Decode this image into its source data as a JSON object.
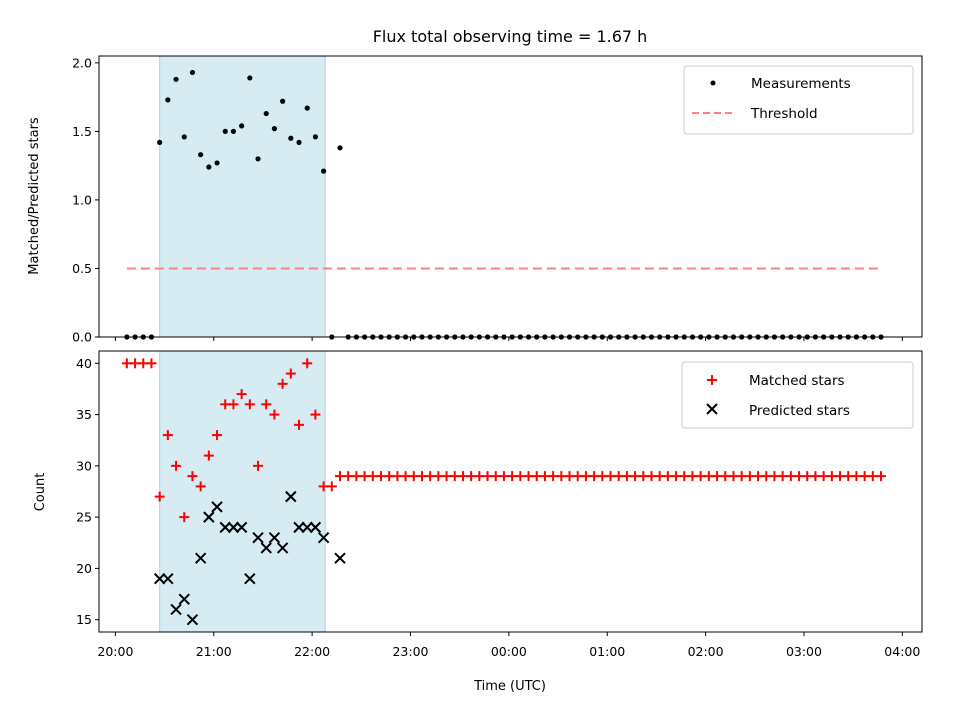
{
  "chart_data": [
    {
      "type": "scatter",
      "title": "Flux total observing time = 1.67 h",
      "xlabel": "",
      "ylabel": "Matched/Predicted stars",
      "ylim": [
        0.0,
        2.05
      ],
      "yticks": [
        "0.0",
        "0.5",
        "1.0",
        "1.5",
        "2.0"
      ],
      "xlim": [
        "19:50",
        "04:12"
      ],
      "grid": false,
      "legend": "top-right",
      "highlight_span": {
        "x": [
          "20:27",
          "22:08"
        ],
        "color": "#add8e6"
      },
      "series": [
        {
          "name": "Measurements",
          "marker": "dot",
          "color": "#000000",
          "x": [
            "20:07",
            "20:12",
            "20:17",
            "20:22",
            "20:27",
            "20:32",
            "20:37",
            "20:42",
            "20:47",
            "20:52",
            "20:57",
            "21:02",
            "21:07",
            "21:12",
            "21:17",
            "21:22",
            "21:27",
            "21:32",
            "21:37",
            "21:42",
            "21:47",
            "21:52",
            "21:57",
            "22:02",
            "22:07",
            "22:12",
            "22:17",
            "22:22",
            "22:27",
            "22:32",
            "22:37",
            "22:42",
            "22:47",
            "22:52",
            "22:57",
            "23:02",
            "23:07",
            "23:12",
            "23:17",
            "23:22",
            "23:27",
            "23:32",
            "23:37",
            "23:42",
            "23:47",
            "23:52",
            "23:57",
            "00:02",
            "00:07",
            "00:12",
            "00:17",
            "00:22",
            "00:27",
            "00:32",
            "00:37",
            "00:42",
            "00:47",
            "00:52",
            "00:57",
            "01:02",
            "01:07",
            "01:12",
            "01:17",
            "01:22",
            "01:27",
            "01:32",
            "01:37",
            "01:42",
            "01:47",
            "01:52",
            "01:57",
            "02:02",
            "02:07",
            "02:12",
            "02:17",
            "02:22",
            "02:27",
            "02:32",
            "02:37",
            "02:42",
            "02:47",
            "02:52",
            "02:57",
            "03:02",
            "03:07",
            "03:12",
            "03:17",
            "03:22",
            "03:27",
            "03:32",
            "03:37",
            "03:42",
            "03:47"
          ],
          "y": [
            0,
            0,
            0,
            0,
            1.42,
            1.73,
            1.88,
            1.46,
            1.93,
            1.33,
            1.24,
            1.27,
            1.5,
            1.5,
            1.54,
            1.89,
            1.3,
            1.63,
            1.52,
            1.72,
            1.45,
            1.42,
            1.67,
            1.46,
            1.21,
            0,
            1.38,
            0,
            0,
            0,
            0,
            0,
            0,
            0,
            0,
            0,
            0,
            0,
            0,
            0,
            0,
            0,
            0,
            0,
            0,
            0,
            0,
            0,
            0,
            0,
            0,
            0,
            0,
            0,
            0,
            0,
            0,
            0,
            0,
            0,
            0,
            0,
            0,
            0,
            0,
            0,
            0,
            0,
            0,
            0,
            0,
            0,
            0,
            0,
            0,
            0,
            0,
            0,
            0,
            0,
            0,
            0,
            0,
            0,
            0,
            0,
            0,
            0,
            0,
            0,
            0,
            0,
            0
          ]
        },
        {
          "name": "Threshold",
          "line": "dashed",
          "color": "#ff7f7f",
          "x": [
            "20:07",
            "03:47"
          ],
          "y": [
            0.5,
            0.5
          ]
        }
      ]
    },
    {
      "type": "scatter",
      "title": "",
      "xlabel": "Time (UTC)",
      "ylabel": "Count",
      "ylim": [
        13.8,
        41.2
      ],
      "yticks": [
        "15",
        "20",
        "25",
        "30",
        "35",
        "40"
      ],
      "xlim": [
        "19:50",
        "04:12"
      ],
      "xticks": [
        "20:00",
        "21:00",
        "22:00",
        "23:00",
        "00:00",
        "01:00",
        "02:00",
        "03:00",
        "04:00"
      ],
      "grid": false,
      "legend": "top-right",
      "highlight_span": {
        "x": [
          "20:27",
          "22:08"
        ],
        "color": "#add8e6"
      },
      "series": [
        {
          "name": "Matched stars",
          "marker": "plus",
          "color": "#ff0000",
          "x": [
            "20:07",
            "20:12",
            "20:17",
            "20:22",
            "20:27",
            "20:32",
            "20:37",
            "20:42",
            "20:47",
            "20:52",
            "20:57",
            "21:02",
            "21:07",
            "21:12",
            "21:17",
            "21:22",
            "21:27",
            "21:32",
            "21:37",
            "21:42",
            "21:47",
            "21:52",
            "21:57",
            "22:02",
            "22:07",
            "22:12",
            "22:17",
            "22:22",
            "22:27",
            "22:32",
            "22:37",
            "22:42",
            "22:47",
            "22:52",
            "22:57",
            "23:02",
            "23:07",
            "23:12",
            "23:17",
            "23:22",
            "23:27",
            "23:32",
            "23:37",
            "23:42",
            "23:47",
            "23:52",
            "23:57",
            "00:02",
            "00:07",
            "00:12",
            "00:17",
            "00:22",
            "00:27",
            "00:32",
            "00:37",
            "00:42",
            "00:47",
            "00:52",
            "00:57",
            "01:02",
            "01:07",
            "01:12",
            "01:17",
            "01:22",
            "01:27",
            "01:32",
            "01:37",
            "01:42",
            "01:47",
            "01:52",
            "01:57",
            "02:02",
            "02:07",
            "02:12",
            "02:17",
            "02:22",
            "02:27",
            "02:32",
            "02:37",
            "02:42",
            "02:47",
            "02:52",
            "02:57",
            "03:02",
            "03:07",
            "03:12",
            "03:17",
            "03:22",
            "03:27",
            "03:32",
            "03:37",
            "03:42",
            "03:47"
          ],
          "y": [
            40,
            40,
            40,
            40,
            27,
            33,
            30,
            25,
            29,
            28,
            31,
            33,
            36,
            36,
            37,
            36,
            30,
            36,
            35,
            38,
            39,
            34,
            40,
            35,
            28,
            28,
            29,
            29,
            29,
            29,
            29,
            29,
            29,
            29,
            29,
            29,
            29,
            29,
            29,
            29,
            29,
            29,
            29,
            29,
            29,
            29,
            29,
            29,
            29,
            29,
            29,
            29,
            29,
            29,
            29,
            29,
            29,
            29,
            29,
            29,
            29,
            29,
            29,
            29,
            29,
            29,
            29,
            29,
            29,
            29,
            29,
            29,
            29,
            29,
            29,
            29,
            29,
            29,
            29,
            29,
            29,
            29,
            29,
            29,
            29,
            29,
            29,
            29,
            29,
            29,
            29,
            29,
            29
          ]
        },
        {
          "name": "Predicted stars",
          "marker": "x",
          "color": "#000000",
          "x": [
            "20:27",
            "20:32",
            "20:37",
            "20:42",
            "20:47",
            "20:52",
            "20:57",
            "21:02",
            "21:07",
            "21:12",
            "21:17",
            "21:22",
            "21:27",
            "21:32",
            "21:37",
            "21:42",
            "21:47",
            "21:52",
            "21:57",
            "22:02",
            "22:07",
            "22:17"
          ],
          "y": [
            19,
            19,
            16,
            17,
            15,
            21,
            25,
            26,
            24,
            24,
            24,
            19,
            23,
            22,
            23,
            22,
            27,
            24,
            24,
            24,
            23,
            21
          ]
        }
      ]
    }
  ]
}
